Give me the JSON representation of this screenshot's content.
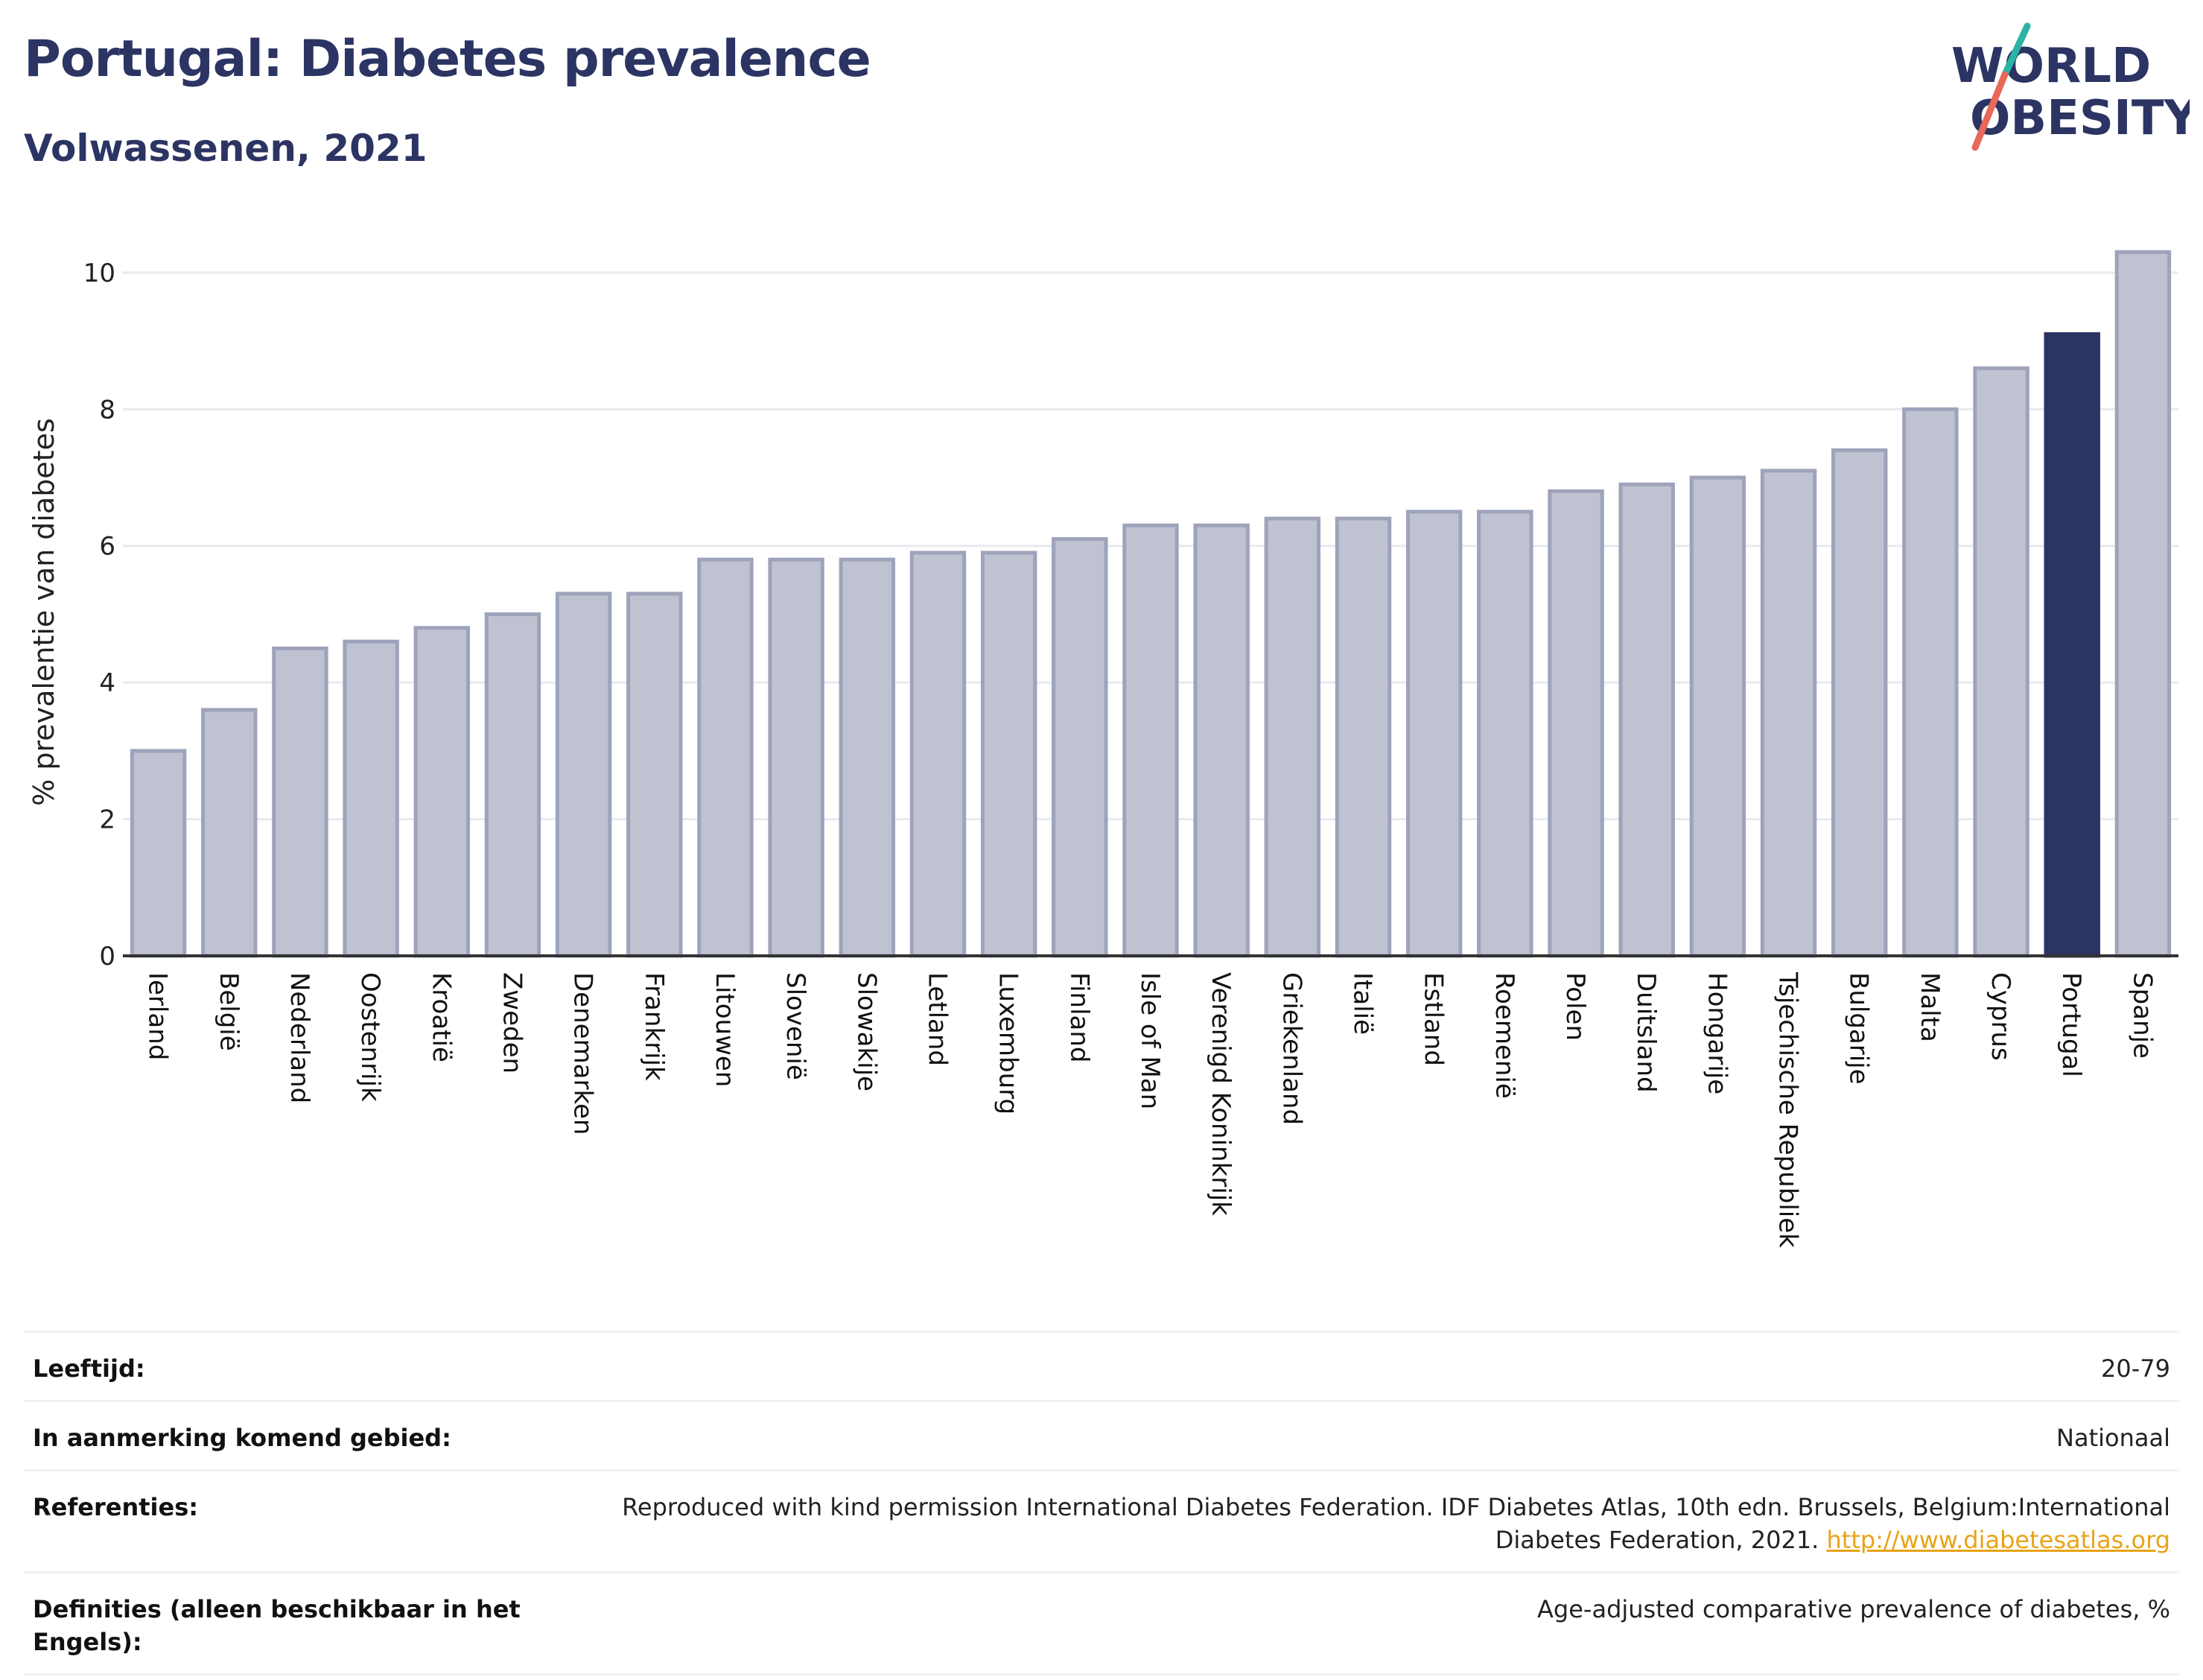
{
  "header": {
    "title": "Portugal: Diabetes prevalence",
    "subtitle": "Volwassenen, 2021"
  },
  "logo": {
    "line1": "WORLD",
    "line2": "OBESITY",
    "colors": {
      "text": "#2b3462",
      "slash_teal": "#2ab3a6",
      "slash_coral": "#e8685a"
    }
  },
  "colors": {
    "highlight": "#2b3462",
    "bar_fill": "#bfc2d0",
    "bar_stroke": "#9ea3bb",
    "grid": "#e9eaf0",
    "axis": "#333333"
  },
  "chart_data": {
    "type": "bar",
    "ylabel": "% prevalentie van diabetes",
    "xlabel": "",
    "ylim": [
      0,
      10.5
    ],
    "yticks": [
      0,
      2,
      4,
      6,
      8,
      10
    ],
    "grid": true,
    "highlight": "Portugal",
    "categories": [
      "Ierland",
      "België",
      "Nederland",
      "Oostenrijk",
      "Kroatië",
      "Zweden",
      "Denemarken",
      "Frankrijk",
      "Litouwen",
      "Slovenië",
      "Slowakije",
      "Letland",
      "Luxemburg",
      "Finland",
      "Isle of Man",
      "Verenigd Koninkrijk",
      "Griekenland",
      "Italië",
      "Estland",
      "Roemenië",
      "Polen",
      "Duitsland",
      "Hongarije",
      "Tsjechische Republiek",
      "Bulgarije",
      "Malta",
      "Cyprus",
      "Portugal",
      "Spanje"
    ],
    "values": [
      3.0,
      3.6,
      4.5,
      4.6,
      4.8,
      5.0,
      5.3,
      5.3,
      5.8,
      5.8,
      5.8,
      5.9,
      5.9,
      6.1,
      6.3,
      6.3,
      6.4,
      6.4,
      6.5,
      6.5,
      6.8,
      6.9,
      7.0,
      7.1,
      7.4,
      8.0,
      8.6,
      9.1,
      10.3
    ]
  },
  "info_table": [
    {
      "label": "Leeftijd:",
      "value": "20-79",
      "link": ""
    },
    {
      "label": "In aanmerking komend gebied:",
      "value": "Nationaal",
      "link": ""
    },
    {
      "label": "Referenties:",
      "value": "Reproduced with kind permission International Diabetes Federation.  IDF Diabetes Atlas, 10th edn. Brussels, Belgium:International Diabetes Federation, 2021. ",
      "link": "http://www.diabetesatlas.org"
    },
    {
      "label": "Definities (alleen beschikbaar in het Engels):",
      "value": "Age-adjusted comparative prevalence of diabetes, %",
      "link": ""
    }
  ]
}
